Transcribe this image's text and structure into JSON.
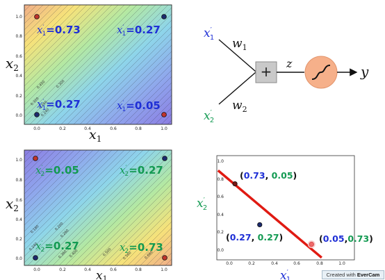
{
  "colors": {
    "blue": "#1e2fd6",
    "green": "#139a52",
    "red": "#e01a12",
    "dot_red": "#c0342c",
    "dot_navy": "#1c2a6e",
    "neuron": "#f6b08a",
    "adder": "#c9c9c9"
  },
  "plot_top": {
    "x_ticks": [
      "0.0",
      "0.2",
      "0.4",
      "0.6",
      "0.8",
      "1.0"
    ],
    "y_ticks": [
      "0.0",
      "0.2",
      "0.4",
      "0.6",
      "0.8",
      "1.0"
    ],
    "contour_labels": [
      "0.450",
      "0.300",
      "0.320",
      "0.250",
      "0.240"
    ],
    "annotations": {
      "top_left": "=0.73",
      "top_right": "=0.27",
      "bottom_left": "=0.27",
      "bottom_right": "=0.05"
    }
  },
  "plot_bottom": {
    "x_ticks": [
      "0.0",
      "0.2",
      "0.4",
      "0.6",
      "0.8",
      "1.0"
    ],
    "y_ticks": [
      "0.0",
      "0.2",
      "0.4",
      "0.6",
      "0.8",
      "1.0"
    ],
    "contour_labels": [
      "0.180",
      "0.200",
      "0.260",
      "0.240",
      "0.360",
      "0.400",
      "0.500",
      "0.560",
      "0.660"
    ],
    "annotations": {
      "top_left": "=0.05",
      "top_right": "=0.27",
      "bottom_left": "=0.27",
      "bottom_right": "=0.73"
    }
  },
  "neuron": {
    "adder_symbol": "+",
    "sum_label": "z",
    "output_label": "y"
  },
  "scatter": {
    "x_ticks": [
      "0.0",
      "0.2",
      "0.4",
      "0.6",
      "0.8",
      "1.0"
    ],
    "y_ticks": [
      "0.0",
      "0.2",
      "0.4",
      "0.6",
      "0.8",
      "1.0"
    ],
    "points": [
      {
        "x": 0.05,
        "y": 0.73,
        "a": "0.73",
        "b": "0.05",
        "color": "#7a1b17"
      },
      {
        "x": 0.27,
        "y": 0.27,
        "a": "0.27",
        "b": "0.27",
        "color": "#1c2a6e"
      },
      {
        "x": 0.73,
        "y": 0.05,
        "a": "0.05",
        "b": "0.73",
        "color": "#f06a6a"
      }
    ],
    "line_start": {
      "x": -0.1,
      "y": 0.88
    },
    "line_end": {
      "x": 0.82,
      "y": -0.1
    }
  },
  "watermark": {
    "prefix": "Created with ",
    "brand": "EverCam"
  }
}
